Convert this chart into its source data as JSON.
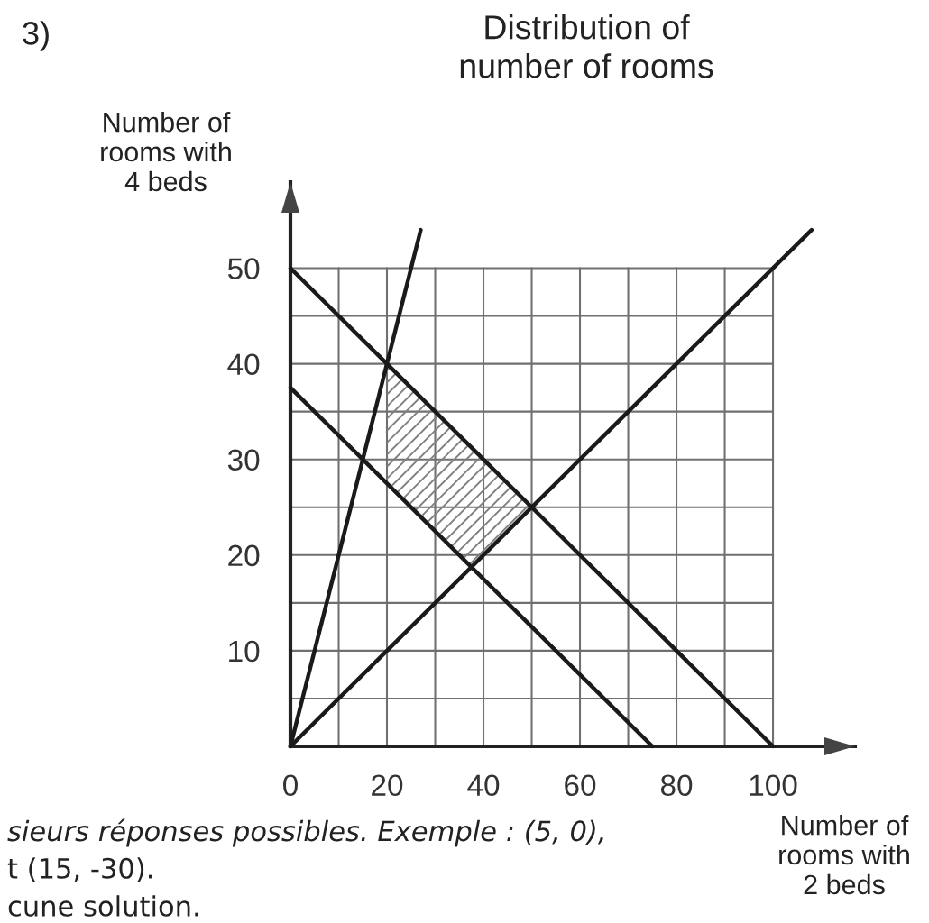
{
  "chart_data": {
    "type": "line",
    "title": "Distribution of\nnumber of rooms",
    "xlabel": "Number of\nrooms with\n2 beds",
    "ylabel": "Number of\nrooms with\n4 beds",
    "series": [
      {
        "color": "#1a1a1a",
        "x": [
          0,
          20,
          37.5,
          50,
          100
        ],
        "values": [
          50,
          40,
          31.25,
          25,
          0
        ],
        "lower": [
          null,
          27.5,
          18.75,
          25,
          null
        ],
        "upper": [
          null,
          40,
          31.25,
          25,
          null
        ]
      },
      {
        "color": "#1a1a1a",
        "x": [
          0,
          75
        ],
        "values": [
          37.5,
          0
        ]
      },
      {
        "color": "#1a1a1a",
        "x": [
          0,
          108
        ],
        "values": [
          0,
          54
        ]
      },
      {
        "color": "#1a1a1a",
        "x": [
          0,
          27
        ],
        "values": [
          0,
          54
        ]
      }
    ],
    "xlim": [
      0,
      117
    ],
    "ylim": [
      0,
      59
    ],
    "xticks": [
      0,
      {
        "value": 10,
        "label": null
      },
      20,
      {
        "value": 30,
        "label": null
      },
      40,
      {
        "value": 50,
        "label": null
      },
      60,
      {
        "value": 70,
        "label": null
      },
      80,
      {
        "value": 90,
        "label": null
      },
      100
    ],
    "yticks": [
      {
        "value": 5,
        "label": null
      },
      10,
      {
        "value": 15,
        "label": null
      },
      20,
      {
        "value": 25,
        "label": null
      },
      30,
      {
        "value": 35,
        "label": null
      },
      40,
      {
        "value": 45,
        "label": null
      },
      50
    ],
    "grid": true,
    "annotations": [
      "3)",
      "sieurs réponses possibles. Exemple : (5, 0),",
      "t (15, -30).",
      "cune solution."
    ]
  }
}
